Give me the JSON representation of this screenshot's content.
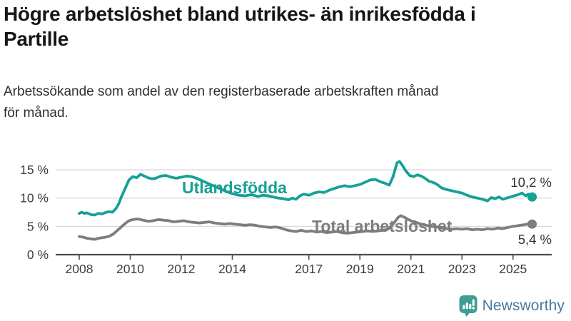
{
  "header": {
    "title_lines": [
      "Högre arbetslöshet bland utrikes- än inrikesfödda i",
      "Partille"
    ],
    "subtitle_lines": [
      "Arbetssökande som andel av den registerbaserade arbetskraften månad",
      "för månad."
    ]
  },
  "branding": {
    "name": "Newsworthy",
    "icon": "newsworthy-bubble-chart-icon",
    "icon_color": "#3f9e92",
    "text_color": "#4a7b9c"
  },
  "chart_data": {
    "type": "line",
    "title": "Högre arbetslöshet bland utrikes- än inrikesfödda i Partille",
    "subtitle": "Arbetssökande som andel av den registerbaserade arbetskraften månad för månad.",
    "grid": true,
    "legend_position": "inline-labels",
    "colors": {
      "grid": "#d9d9d9",
      "axis": "#4c4c4c",
      "tick_text": "#3d3d3d",
      "annotation_text": "#333333"
    },
    "x_axis": {
      "unit": "year",
      "data_start": 2008.0,
      "data_end": 2025.75,
      "ticks": [
        {
          "year": 2008,
          "label": "2008"
        },
        {
          "year": 2010,
          "label": "2010"
        },
        {
          "year": 2012,
          "label": "2012"
        },
        {
          "year": 2014,
          "label": "2014"
        },
        {
          "year": 2017,
          "label": "2017"
        },
        {
          "year": 2019,
          "label": "2019"
        },
        {
          "year": 2021,
          "label": "2021"
        },
        {
          "year": 2023,
          "label": "2023"
        },
        {
          "year": 2025,
          "label": "2025"
        }
      ]
    },
    "y_axis": {
      "unit": "%",
      "range": [
        0,
        17.5
      ],
      "ticks": [
        {
          "value": 0,
          "label": "0 %"
        },
        {
          "value": 5,
          "label": "5 %"
        },
        {
          "value": 10,
          "label": "10 %"
        },
        {
          "value": 15,
          "label": "15 %"
        }
      ]
    },
    "series": [
      {
        "name": "Utlandsfödda",
        "color": "#16a195",
        "end_label": "10,2 %",
        "last_value": 10.2,
        "points": [
          [
            2008.0,
            7.3
          ],
          [
            2008.1,
            7.5
          ],
          [
            2008.2,
            7.3
          ],
          [
            2008.3,
            7.4
          ],
          [
            2008.45,
            7.1
          ],
          [
            2008.6,
            7.0
          ],
          [
            2008.75,
            7.3
          ],
          [
            2008.9,
            7.2
          ],
          [
            2009.0,
            7.4
          ],
          [
            2009.15,
            7.6
          ],
          [
            2009.3,
            7.5
          ],
          [
            2009.45,
            8.2
          ],
          [
            2009.55,
            9.0
          ],
          [
            2009.65,
            10.2
          ],
          [
            2009.75,
            11.2
          ],
          [
            2009.85,
            12.2
          ],
          [
            2009.95,
            13.2
          ],
          [
            2010.1,
            13.8
          ],
          [
            2010.25,
            13.6
          ],
          [
            2010.4,
            14.2
          ],
          [
            2010.55,
            13.9
          ],
          [
            2010.7,
            13.6
          ],
          [
            2010.85,
            13.4
          ],
          [
            2011.0,
            13.5
          ],
          [
            2011.2,
            13.9
          ],
          [
            2011.4,
            14.0
          ],
          [
            2011.6,
            13.7
          ],
          [
            2011.8,
            13.5
          ],
          [
            2012.0,
            13.7
          ],
          [
            2012.2,
            13.9
          ],
          [
            2012.4,
            13.8
          ],
          [
            2012.6,
            13.5
          ],
          [
            2012.8,
            13.1
          ],
          [
            2013.0,
            12.7
          ],
          [
            2013.25,
            12.2
          ],
          [
            2013.5,
            11.7
          ],
          [
            2013.75,
            11.2
          ],
          [
            2014.0,
            10.8
          ],
          [
            2014.25,
            10.5
          ],
          [
            2014.5,
            10.4
          ],
          [
            2014.75,
            10.6
          ],
          [
            2015.0,
            10.3
          ],
          [
            2015.2,
            10.5
          ],
          [
            2015.4,
            10.4
          ],
          [
            2015.6,
            10.2
          ],
          [
            2015.8,
            10.0
          ],
          [
            2016.0,
            9.9
          ],
          [
            2016.2,
            9.7
          ],
          [
            2016.35,
            10.0
          ],
          [
            2016.5,
            9.8
          ],
          [
            2016.65,
            10.4
          ],
          [
            2016.8,
            10.7
          ],
          [
            2017.0,
            10.5
          ],
          [
            2017.2,
            10.9
          ],
          [
            2017.4,
            11.1
          ],
          [
            2017.6,
            11.0
          ],
          [
            2017.8,
            11.4
          ],
          [
            2018.0,
            11.7
          ],
          [
            2018.2,
            12.0
          ],
          [
            2018.4,
            12.2
          ],
          [
            2018.6,
            12.0
          ],
          [
            2018.8,
            12.2
          ],
          [
            2019.0,
            12.4
          ],
          [
            2019.2,
            12.8
          ],
          [
            2019.4,
            13.2
          ],
          [
            2019.6,
            13.3
          ],
          [
            2019.8,
            12.9
          ],
          [
            2020.0,
            12.6
          ],
          [
            2020.15,
            12.3
          ],
          [
            2020.3,
            13.8
          ],
          [
            2020.45,
            16.2
          ],
          [
            2020.55,
            16.5
          ],
          [
            2020.65,
            15.9
          ],
          [
            2020.8,
            14.8
          ],
          [
            2020.95,
            14.0
          ],
          [
            2021.1,
            13.8
          ],
          [
            2021.25,
            14.1
          ],
          [
            2021.4,
            13.9
          ],
          [
            2021.55,
            13.5
          ],
          [
            2021.7,
            13.0
          ],
          [
            2021.85,
            12.8
          ],
          [
            2022.0,
            12.5
          ],
          [
            2022.2,
            11.8
          ],
          [
            2022.4,
            11.5
          ],
          [
            2022.6,
            11.3
          ],
          [
            2022.8,
            11.1
          ],
          [
            2023.0,
            10.9
          ],
          [
            2023.2,
            10.5
          ],
          [
            2023.4,
            10.2
          ],
          [
            2023.6,
            10.0
          ],
          [
            2023.8,
            9.8
          ],
          [
            2024.0,
            9.5
          ],
          [
            2024.15,
            10.1
          ],
          [
            2024.3,
            9.9
          ],
          [
            2024.45,
            10.2
          ],
          [
            2024.6,
            9.8
          ],
          [
            2024.75,
            10.0
          ],
          [
            2024.9,
            10.2
          ],
          [
            2025.05,
            10.4
          ],
          [
            2025.2,
            10.6
          ],
          [
            2025.35,
            10.9
          ],
          [
            2025.5,
            10.4
          ],
          [
            2025.6,
            10.7
          ],
          [
            2025.75,
            10.2
          ]
        ]
      },
      {
        "name": "Total arbetslöshet",
        "color": "#7d7d7d",
        "end_label": "5,4 %",
        "last_value": 5.4,
        "points": [
          [
            2008.0,
            3.2
          ],
          [
            2008.15,
            3.1
          ],
          [
            2008.3,
            2.9
          ],
          [
            2008.45,
            2.8
          ],
          [
            2008.6,
            2.7
          ],
          [
            2008.75,
            2.9
          ],
          [
            2008.9,
            3.0
          ],
          [
            2009.05,
            3.1
          ],
          [
            2009.2,
            3.3
          ],
          [
            2009.35,
            3.7
          ],
          [
            2009.5,
            4.3
          ],
          [
            2009.65,
            4.9
          ],
          [
            2009.8,
            5.5
          ],
          [
            2009.95,
            6.0
          ],
          [
            2010.1,
            6.2
          ],
          [
            2010.3,
            6.3
          ],
          [
            2010.5,
            6.1
          ],
          [
            2010.7,
            5.9
          ],
          [
            2010.9,
            6.0
          ],
          [
            2011.1,
            6.2
          ],
          [
            2011.3,
            6.1
          ],
          [
            2011.5,
            6.0
          ],
          [
            2011.7,
            5.8
          ],
          [
            2011.9,
            5.9
          ],
          [
            2012.1,
            6.0
          ],
          [
            2012.3,
            5.8
          ],
          [
            2012.5,
            5.7
          ],
          [
            2012.7,
            5.6
          ],
          [
            2012.9,
            5.7
          ],
          [
            2013.1,
            5.8
          ],
          [
            2013.3,
            5.6
          ],
          [
            2013.5,
            5.5
          ],
          [
            2013.7,
            5.4
          ],
          [
            2013.9,
            5.5
          ],
          [
            2014.1,
            5.4
          ],
          [
            2014.3,
            5.3
          ],
          [
            2014.5,
            5.2
          ],
          [
            2014.7,
            5.3
          ],
          [
            2014.9,
            5.2
          ],
          [
            2015.1,
            5.0
          ],
          [
            2015.3,
            4.9
          ],
          [
            2015.5,
            4.8
          ],
          [
            2015.7,
            4.9
          ],
          [
            2015.9,
            4.7
          ],
          [
            2016.1,
            4.4
          ],
          [
            2016.3,
            4.2
          ],
          [
            2016.5,
            4.1
          ],
          [
            2016.7,
            4.3
          ],
          [
            2016.9,
            4.1
          ],
          [
            2017.1,
            4.2
          ],
          [
            2017.3,
            4.0
          ],
          [
            2017.5,
            4.1
          ],
          [
            2017.7,
            3.9
          ],
          [
            2017.9,
            4.0
          ],
          [
            2018.1,
            4.1
          ],
          [
            2018.3,
            3.9
          ],
          [
            2018.5,
            3.8
          ],
          [
            2018.7,
            3.9
          ],
          [
            2018.9,
            4.0
          ],
          [
            2019.1,
            4.1
          ],
          [
            2019.3,
            4.2
          ],
          [
            2019.5,
            4.1
          ],
          [
            2019.7,
            4.2
          ],
          [
            2019.9,
            4.3
          ],
          [
            2020.1,
            4.5
          ],
          [
            2020.3,
            5.4
          ],
          [
            2020.5,
            6.6
          ],
          [
            2020.6,
            6.9
          ],
          [
            2020.75,
            6.6
          ],
          [
            2020.9,
            6.2
          ],
          [
            2021.05,
            5.9
          ],
          [
            2021.2,
            5.7
          ],
          [
            2021.4,
            5.4
          ],
          [
            2021.6,
            5.2
          ],
          [
            2021.8,
            5.0
          ],
          [
            2022.0,
            4.9
          ],
          [
            2022.2,
            4.7
          ],
          [
            2022.4,
            4.6
          ],
          [
            2022.6,
            4.5
          ],
          [
            2022.8,
            4.6
          ],
          [
            2023.0,
            4.5
          ],
          [
            2023.2,
            4.6
          ],
          [
            2023.4,
            4.4
          ],
          [
            2023.6,
            4.5
          ],
          [
            2023.8,
            4.4
          ],
          [
            2024.0,
            4.6
          ],
          [
            2024.2,
            4.5
          ],
          [
            2024.4,
            4.7
          ],
          [
            2024.6,
            4.6
          ],
          [
            2024.8,
            4.8
          ],
          [
            2025.0,
            5.0
          ],
          [
            2025.15,
            5.1
          ],
          [
            2025.3,
            5.2
          ],
          [
            2025.45,
            5.3
          ],
          [
            2025.6,
            5.45
          ],
          [
            2025.75,
            5.4
          ]
        ]
      }
    ]
  }
}
